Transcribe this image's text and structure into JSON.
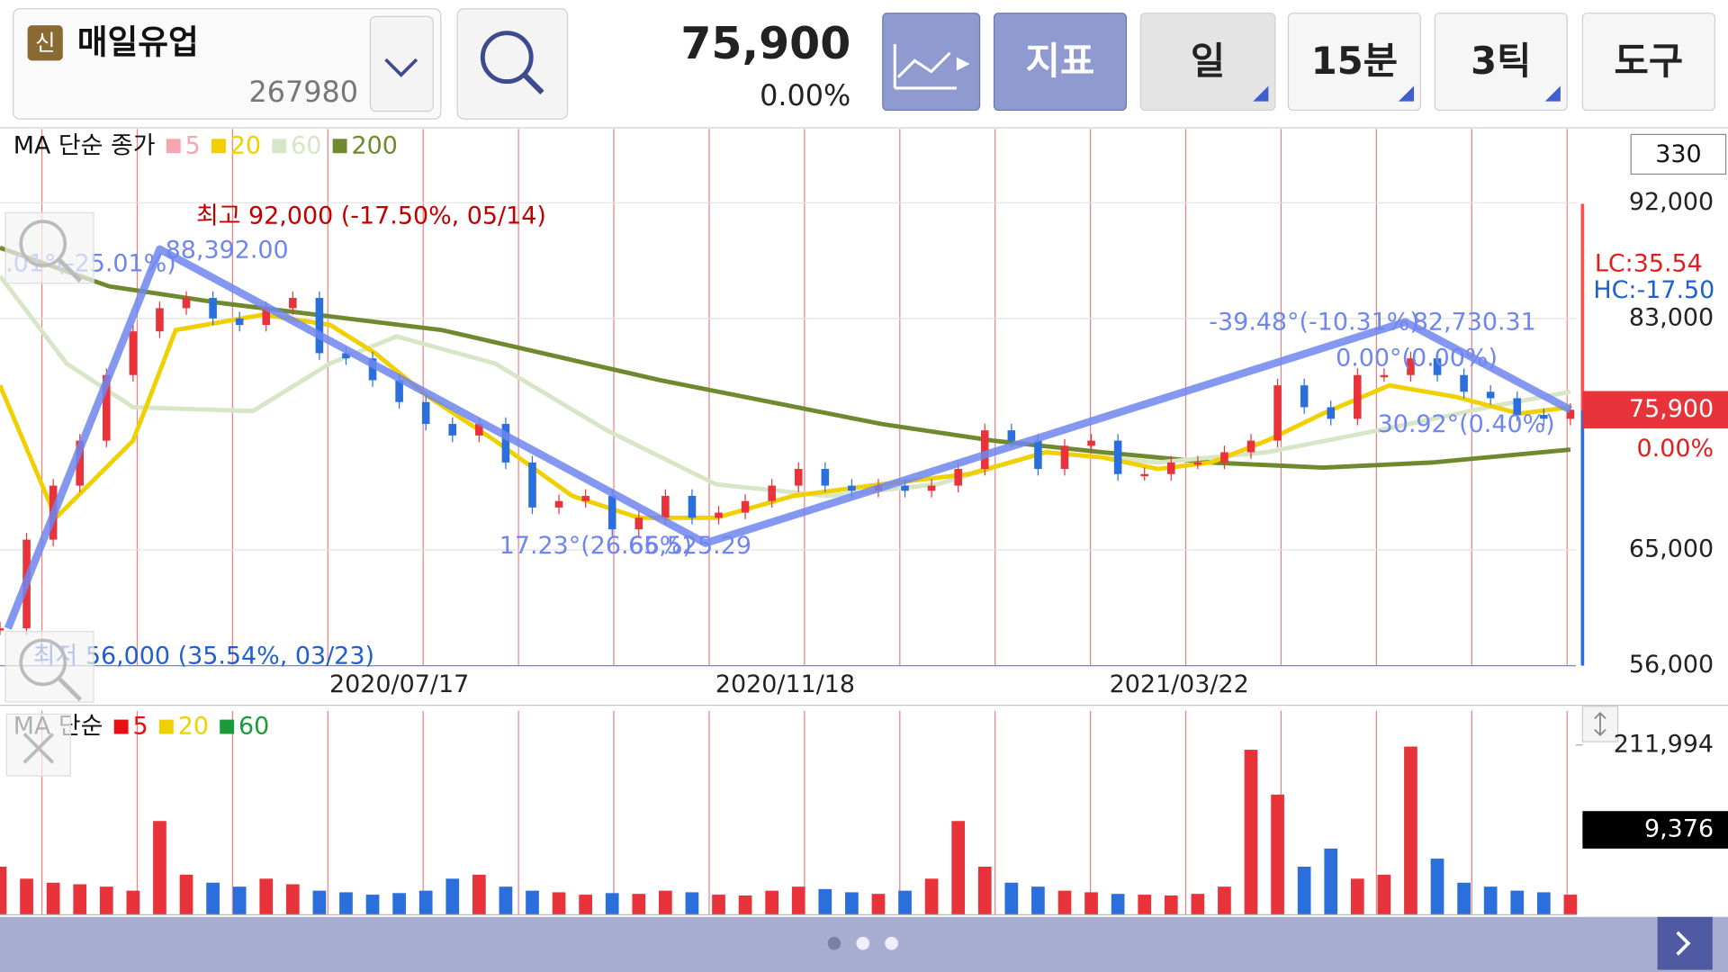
{
  "header": {
    "badge": "신",
    "name": "매일유업",
    "code": "267980",
    "price": "75,900",
    "change": "0.00%",
    "buttons": [
      "지표",
      "일",
      "15분",
      "3틱",
      "도구"
    ]
  },
  "chart_data": [
    {
      "type": "candlestick",
      "legend": {
        "title": "MA 단순 종가",
        "entries": [
          {
            "name": "5",
            "color": "#f4a7b0"
          },
          {
            "name": "20",
            "color": "#f0d000"
          },
          {
            "name": "60",
            "color": "#d6e6c6"
          },
          {
            "name": "200",
            "color": "#6f8a2e"
          }
        ]
      },
      "values": [
        58900,
        65800,
        70000,
        73500,
        78600,
        82000,
        83800,
        84600,
        83000,
        82500,
        83800,
        84600,
        80300,
        79900,
        78200,
        76500,
        74800,
        73900,
        74800,
        71800,
        68300,
        68800,
        69200,
        66600,
        67500,
        69200,
        67500,
        67900,
        68800,
        70000,
        71300,
        70000,
        69600,
        70000,
        69600,
        70000,
        71300,
        74300,
        73500,
        71300,
        73100,
        73500,
        70900,
        70900,
        71800,
        71800,
        72600,
        73500,
        77800,
        76100,
        75200,
        78600,
        78600,
        79900,
        78600,
        77300,
        76800,
        75500,
        75200,
        75900
      ],
      "xlim": [
        0,
        59
      ],
      "xticks": [
        {
          "value": 15,
          "label": "2020/07/17"
        },
        {
          "value": 29.5,
          "label": "2020/11/18"
        },
        {
          "value": 44.3,
          "label": "2021/03/22"
        }
      ],
      "ylim": [
        56000,
        92000
      ],
      "yticks": [
        {
          "value": 56000,
          "label": "56,000"
        },
        {
          "value": 65000,
          "label": "65,000"
        },
        {
          "value": 83000,
          "label": "83,000"
        },
        {
          "value": 92000,
          "label": "92,000"
        }
      ],
      "series": [
        {
          "name": "20",
          "color": "#f0d000",
          "x": [
            0,
            2.1,
            5,
            6.6,
            9.9,
            12.4,
            14.1,
            16.1,
            18.6,
            21.5,
            24,
            26.9,
            29.8,
            33.1,
            36.4,
            39.3,
            41.4,
            43.5,
            45.5,
            47.6,
            49.7,
            52.2,
            54.7,
            57.1,
            59
          ],
          "values": [
            77800,
            67500,
            73500,
            82100,
            83300,
            82500,
            80300,
            76900,
            73500,
            69200,
            67500,
            67500,
            69200,
            70100,
            70900,
            72600,
            72200,
            71300,
            71800,
            73500,
            75600,
            77800,
            76900,
            75600,
            76100
          ]
        },
        {
          "name": "60",
          "color": "#d6e6c6",
          "x": [
            0,
            2.5,
            5,
            9.5,
            12.4,
            14.9,
            18.6,
            22.8,
            26.9,
            31.1,
            35.2,
            39.3,
            43.5,
            47.6,
            51.8,
            55.9,
            59
          ],
          "values": [
            86300,
            79500,
            76100,
            75800,
            79500,
            81600,
            79500,
            74300,
            70100,
            69200,
            70100,
            72600,
            71800,
            72600,
            74300,
            76100,
            77300
          ]
        },
        {
          "name": "200",
          "color": "#6f8a2e",
          "x": [
            0,
            4.1,
            8.3,
            16.6,
            24.8,
            33.1,
            37.3,
            41.4,
            45.5,
            49.7,
            53.8,
            59
          ],
          "values": [
            88500,
            85500,
            84200,
            82100,
            78200,
            74800,
            73500,
            72600,
            71800,
            71400,
            71800,
            72800
          ]
        }
      ],
      "trendline": {
        "color": "#6f86f0",
        "x": [
          0.3,
          6,
          26.5,
          52.8,
          59
        ],
        "values": [
          58900,
          88392,
          65525.29,
          82730.31,
          75900
        ]
      },
      "trend_labels": [
        ".01°(-25.01%)",
        "88,392.00",
        "17.23°(26.66%)",
        "65,525.29",
        "-39.48°(-10.31%)",
        "82,730.31",
        "0.00°(0.00%)",
        "30.92°(0.40%)"
      ],
      "high_note": "최고 92,000 (-17.50%, 05/14)",
      "low_note": "최저 56,000 (35.54%, 03/23)",
      "scale_box": "330",
      "lc": "LC:35.54",
      "hc": "HC:-17.50",
      "last_price_label": "75,900",
      "last_change_label": "0.00%"
    },
    {
      "type": "bar",
      "legend": {
        "title": "MA 단순",
        "entries": [
          {
            "name": "5",
            "color": "#e81010"
          },
          {
            "name": "20",
            "color": "#f0d000"
          },
          {
            "name": "60",
            "color": "#1a9a3a"
          }
        ]
      },
      "values": [
        60000,
        45000,
        40000,
        38000,
        35000,
        30000,
        117000,
        50000,
        40000,
        35000,
        45000,
        38000,
        30000,
        28000,
        25000,
        27000,
        30000,
        45000,
        50000,
        35000,
        30000,
        28000,
        25000,
        27000,
        26000,
        30000,
        28000,
        25000,
        24000,
        30000,
        35000,
        32000,
        28000,
        26000,
        30000,
        45000,
        117000,
        60000,
        40000,
        35000,
        30000,
        28000,
        26000,
        25000,
        24000,
        26000,
        35000,
        206000,
        150000,
        60000,
        82600,
        45000,
        50000,
        210000,
        70000,
        40000,
        35000,
        30000,
        28000,
        25000
      ],
      "xlim": [
        0,
        59
      ],
      "ylim": [
        0,
        211994
      ],
      "yticks": [
        {
          "value": 211994,
          "label": "211,994"
        }
      ],
      "current_label": "9,376"
    }
  ]
}
